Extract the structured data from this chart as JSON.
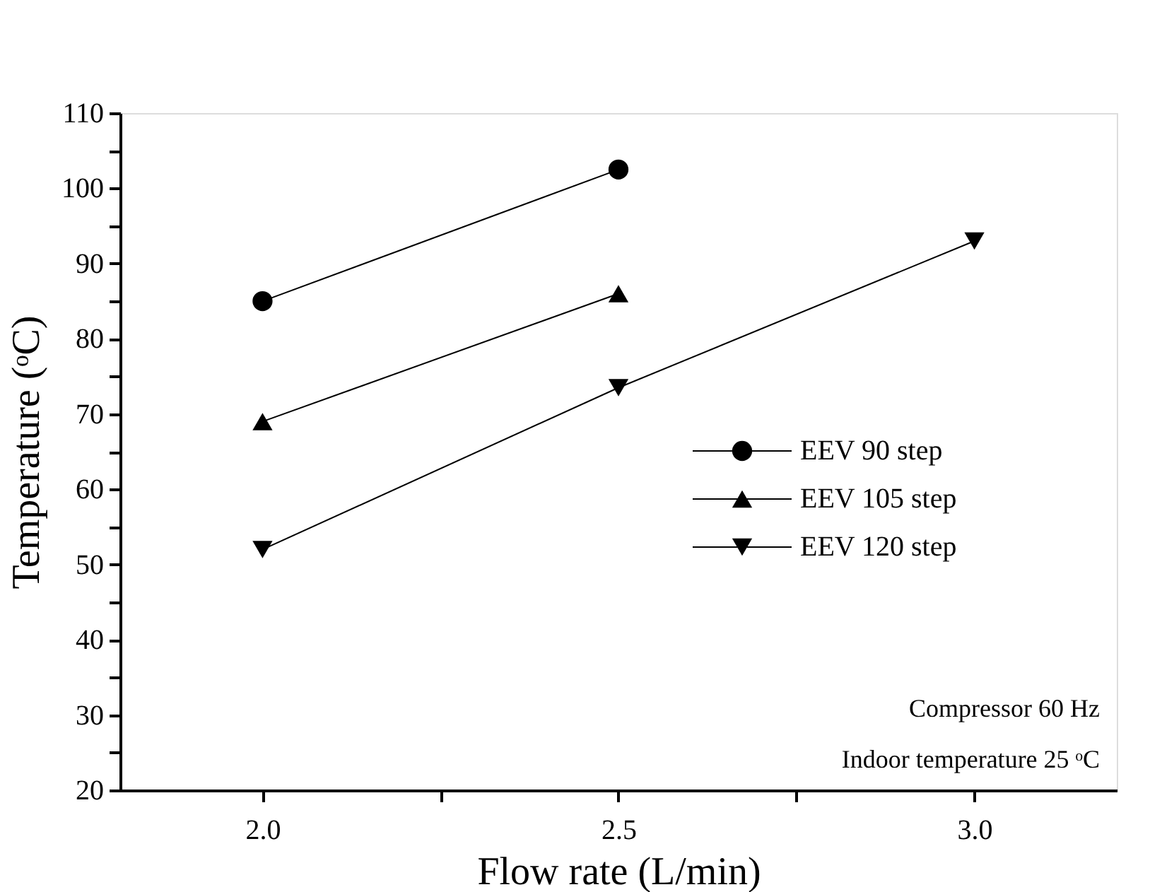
{
  "chart_data": {
    "type": "line",
    "xlabel": "Flow rate (L/min)",
    "ylabel": "Temperature (ᵒC)",
    "xlim": [
      1.8,
      3.2
    ],
    "xticks": [
      {
        "value": 2.0,
        "label": "2.0"
      },
      {
        "value": 2.25,
        "label": null
      },
      {
        "value": 2.5,
        "label": "2.5"
      },
      {
        "value": 2.75,
        "label": null
      },
      {
        "value": 3.0,
        "label": "3.0"
      }
    ],
    "ylim": [
      20,
      110
    ],
    "yticks": [
      20,
      {
        "value": 25,
        "label": null
      },
      30,
      {
        "value": 35,
        "label": null
      },
      40,
      {
        "value": 45,
        "label": null
      },
      50,
      {
        "value": 55,
        "label": null
      },
      60,
      {
        "value": 65,
        "label": null
      },
      70,
      {
        "value": 75,
        "label": null
      },
      80,
      {
        "value": 85,
        "label": null
      },
      90,
      {
        "value": 95,
        "label": null
      },
      100,
      {
        "value": 105,
        "label": null
      },
      110
    ],
    "series": [
      {
        "name": "EEV 90 step",
        "color": "#000000",
        "marker": "circle",
        "x": [
          2.0,
          2.5
        ],
        "values": [
          85,
          102.5
        ]
      },
      {
        "name": "EEV 105 step",
        "color": "#000000",
        "marker": "triangle",
        "x": [
          2.0,
          2.5
        ],
        "values": [
          69,
          86
        ]
      },
      {
        "name": "EEV 120 step",
        "color": "#000000",
        "marker": "triangle-down",
        "x": [
          2.0,
          2.5,
          3.0
        ],
        "values": [
          52,
          73.5,
          93
        ]
      }
    ],
    "legend": "bottom right",
    "grid": false,
    "line_style": "solid",
    "annotations": [
      "Compressor 60 Hz",
      "Indoor temperature 25 ᵒC"
    ]
  }
}
